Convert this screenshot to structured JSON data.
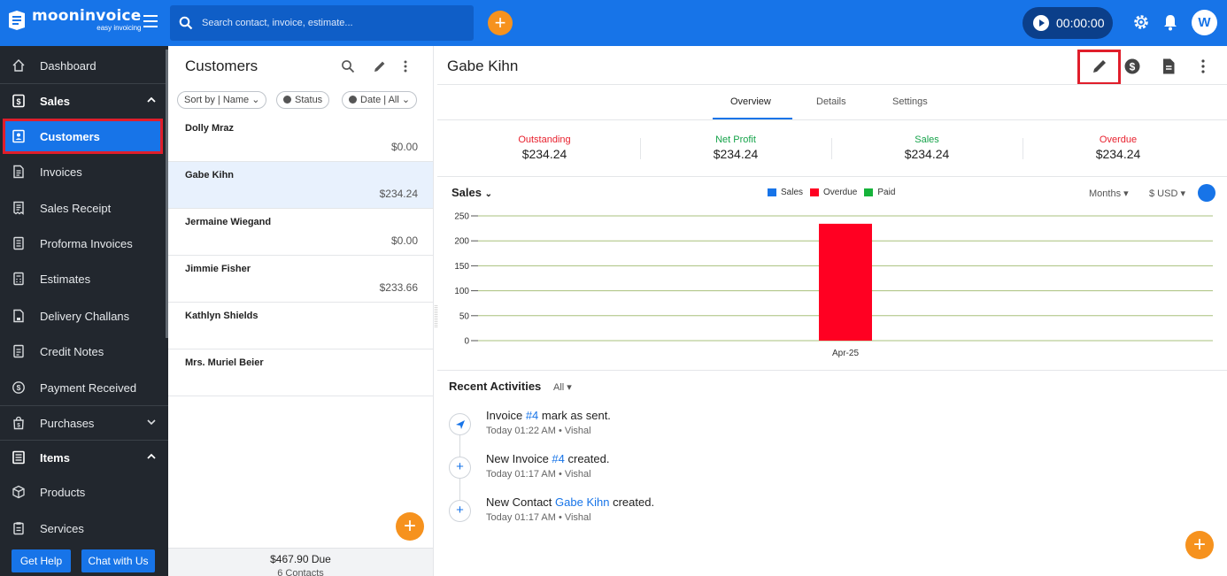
{
  "topbar": {
    "logo_name": "mooninvoice",
    "logo_tagline": "easy invoicing",
    "search_placeholder": "Search contact, invoice, estimate...",
    "timer": "00:00:00",
    "avatar_initial": "W",
    "colors": {
      "primary": "#1774e8",
      "accent": "#f6921e"
    }
  },
  "sidebar": {
    "dashboard": "Dashboard",
    "sales": "Sales",
    "customers": "Customers",
    "invoices": "Invoices",
    "sales_receipt": "Sales Receipt",
    "proforma": "Proforma Invoices",
    "estimates": "Estimates",
    "delivery": "Delivery Challans",
    "credit_notes": "Credit Notes",
    "payment_received": "Payment Received",
    "purchases": "Purchases",
    "items": "Items",
    "products": "Products",
    "services": "Services",
    "get_help": "Get Help",
    "chat": "Chat with Us"
  },
  "customers_panel": {
    "title": "Customers",
    "sort_chip": "Sort by | Name",
    "status_chip": "Status",
    "date_chip": "Date | All",
    "rows": [
      {
        "name": "Dolly Mraz",
        "amount": "$0.00"
      },
      {
        "name": "Gabe Kihn",
        "amount": "$234.24"
      },
      {
        "name": "Jermaine Wiegand",
        "amount": "$0.00"
      },
      {
        "name": "Jimmie Fisher",
        "amount": "$233.66"
      },
      {
        "name": "Kathlyn Shields",
        "amount": ""
      },
      {
        "name": "Mrs. Muriel Beier",
        "amount": ""
      }
    ],
    "footer_due": "$467.90  Due",
    "footer_count": "6 Contacts"
  },
  "detail": {
    "title": "Gabe Kihn",
    "tabs": [
      "Overview",
      "Details",
      "Settings"
    ],
    "stats": [
      {
        "label": "Outstanding",
        "value": "$234.24",
        "color": "#e8212e"
      },
      {
        "label": "Net Profit",
        "value": "$234.24",
        "color": "#16a34a"
      },
      {
        "label": "Sales",
        "value": "$234.24",
        "color": "#16a34a"
      },
      {
        "label": "Overdue",
        "value": "$234.24",
        "color": "#e8212e"
      }
    ],
    "chart_title": "Sales",
    "period": "Months",
    "currency": "$ USD",
    "recent_title": "Recent Activities",
    "recent_filter": "All",
    "activities": [
      {
        "pre": "Invoice ",
        "link": "#4",
        "post": " mark as sent.",
        "meta": "Today 01:22 AM • Vishal",
        "icon": "send-icon"
      },
      {
        "pre": "New Invoice ",
        "link": "#4",
        "post": " created.",
        "meta": "Today 01:17 AM • Vishal",
        "icon": "plus-icon"
      },
      {
        "pre": "New Contact ",
        "link": "Gabe Kihn",
        "post": " created.",
        "meta": "Today 01:17 AM • Vishal",
        "icon": "plus-icon"
      }
    ]
  },
  "chart_data": {
    "type": "bar",
    "categories": [
      "Apr-25"
    ],
    "series": [
      {
        "name": "Sales",
        "values": [
          0
        ],
        "color": "#1774e8"
      },
      {
        "name": "Overdue",
        "values": [
          234.24
        ],
        "color": "#ff0022"
      },
      {
        "name": "Paid",
        "values": [
          0
        ],
        "color": "#16b33a"
      }
    ],
    "ylim": [
      0,
      250
    ],
    "yticks": [
      0,
      50,
      100,
      150,
      200,
      250
    ],
    "grid": true,
    "legend": "top-center"
  }
}
